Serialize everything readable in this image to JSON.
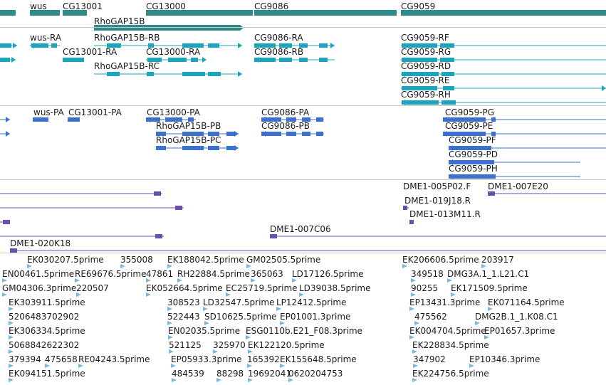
{
  "colors": {
    "gene": "#2f8a8a",
    "transcript": "#1aa5bf",
    "protein": "#3b6fd0",
    "clone": "#6a4fb0",
    "est": "#7bb6dc",
    "separator": "#c8c8c8"
  },
  "tracks": {
    "genes": {
      "labels": [
        "wus",
        "CG13001",
        "CG13000",
        "RhoGAP15B",
        "CG9086",
        "CG9059"
      ]
    },
    "transcripts": {
      "labels": [
        "wus-RA",
        "RhoGAP15B-RB",
        "CG9086-RA",
        "CG9059-RF",
        "CG13001-RA",
        "CG13000-RA",
        "CG9086-RB",
        "CG9059-RG",
        "RhoGAP15B-RC",
        "CG9059-RD",
        "CG9059-RE",
        "CG9059-RH"
      ]
    },
    "proteins": {
      "labels": [
        "wus-PA",
        "CG13001-PA",
        "CG13000-PA",
        "CG9086-PA",
        "CG9059-PG",
        "RhoGAP15B-PB",
        "CG9086-PB",
        "CG9059-PE",
        "RhoGAP15B-PC",
        "CG9059-PF",
        "CG9059-PD",
        "CG9059-PH"
      ]
    },
    "clones": {
      "labels": [
        "DME1-005P02.F",
        "DME1-007E20",
        "DME1-019J18.R",
        "DME1-013M11.R",
        "DME1-007C06",
        "DME1-020K18"
      ]
    },
    "ests": {
      "labels": [
        "EK030207.5prime",
        "355008",
        "EK188042.5prime",
        "GM02505.5prime",
        "EK206606.5prime",
        "203917",
        "EN00461.5prime",
        "RE69676.5prime",
        "47861",
        "RH22884.5prime",
        "365063",
        "LD17126.5prime",
        "349518",
        "DMG3A.1_1.L21.C1",
        "GM04306.3prime",
        "220507",
        "EK052664.5prime",
        "EC25719.5prime",
        "LD39038.5prime",
        "90255",
        "EK171509.5prime",
        "EK303911.5prime",
        "308523",
        "LD32547.5prime",
        "LP12412.5prime",
        "EP13431.3prime",
        "EK071164.5prime",
        "5206483702902",
        "522443",
        "SD10625.5prime",
        "EP01001.3prime",
        "475562",
        "DMG2B.1_1.K08.C1",
        "EK306334.5prime",
        "EN02035.5prime",
        "ESG0110b.E21_F08.3prime",
        "EK004704.5prime",
        "EP01657.3prime",
        "5068842622302",
        "521125",
        "325970",
        "EK122120.5prime",
        "EK228834.5prime",
        "379394",
        "475658",
        "RE04243.5prime",
        "EP05933.3prime",
        "165392",
        "EK155648.5prime",
        "347902",
        "EP10346.3prime",
        "EK094151.5prime",
        "484539",
        "88298",
        "19692041",
        "0620204753",
        "EK224756.5prime"
      ]
    }
  }
}
